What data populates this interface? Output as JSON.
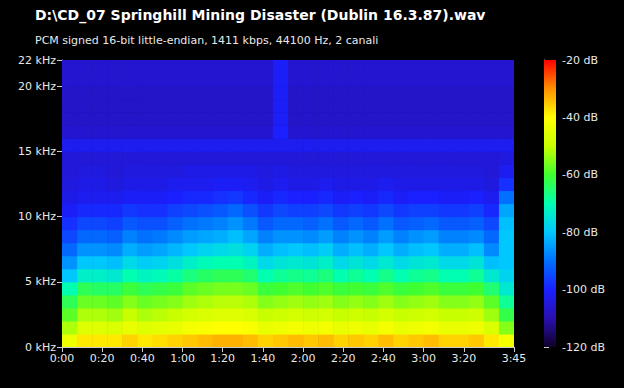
{
  "chart_data": {
    "type": "heatmap",
    "title": "D:\\CD_07 Springhill Mining Disaster (Dublin 16.3.87).wav",
    "subtitle": "PCM signed 16-bit little-endian, 1411 kbps, 44100 Hz, 2 canali",
    "xlim": [
      0,
      225
    ],
    "ylim": [
      0,
      22
    ],
    "xticks": [
      {
        "value": 0,
        "label": "0:00"
      },
      {
        "value": 20,
        "label": "0:20"
      },
      {
        "value": 40,
        "label": "0:40"
      },
      {
        "value": 60,
        "label": "1:00"
      },
      {
        "value": 80,
        "label": "1:20"
      },
      {
        "value": 100,
        "label": "1:40"
      },
      {
        "value": 120,
        "label": "2:00"
      },
      {
        "value": 140,
        "label": "2:20"
      },
      {
        "value": 160,
        "label": "2:40"
      },
      {
        "value": 180,
        "label": "3:00"
      },
      {
        "value": 200,
        "label": "3:20"
      },
      {
        "value": 225,
        "label": "3:45"
      }
    ],
    "yticks": [
      {
        "value": 0,
        "label": "0 kHz"
      },
      {
        "value": 5,
        "label": "5 kHz"
      },
      {
        "value": 10,
        "label": "10 kHz"
      },
      {
        "value": 15,
        "label": "15 kHz"
      },
      {
        "value": 20,
        "label": "20 kHz"
      },
      {
        "value": 22,
        "label": "22 kHz"
      }
    ],
    "grid": false,
    "xbins": [
      0,
      7.5,
      15,
      22.5,
      30,
      37.5,
      45,
      52.5,
      60,
      67.5,
      75,
      82.5,
      90,
      97.5,
      105,
      112.5,
      120,
      127.5,
      135,
      142.5,
      150,
      157.5,
      165,
      172.5,
      180,
      187.5,
      195,
      202.5,
      210,
      217.5,
      225
    ],
    "ybins": [
      0,
      1,
      2,
      3,
      4,
      5,
      6,
      7,
      8,
      9,
      10,
      11,
      12,
      13,
      14,
      15,
      16,
      17,
      18,
      19,
      20,
      21,
      22
    ],
    "cells": [
      [
        -43,
        -38,
        -38,
        -38,
        -36,
        -38,
        -37,
        -36,
        -35,
        -34,
        -33,
        -33,
        -34,
        -36,
        -35,
        -34,
        -35,
        -34,
        -36,
        -35,
        -36,
        -34,
        -36,
        -35,
        -34,
        -36,
        -36,
        -35,
        -38,
        -42
      ],
      [
        -52,
        -46,
        -46,
        -47,
        -44,
        -46,
        -45,
        -44,
        -42,
        -41,
        -40,
        -40,
        -41,
        -44,
        -43,
        -42,
        -43,
        -42,
        -44,
        -43,
        -44,
        -42,
        -44,
        -43,
        -42,
        -44,
        -44,
        -43,
        -47,
        -55
      ],
      [
        -58,
        -52,
        -52,
        -53,
        -50,
        -52,
        -51,
        -50,
        -48,
        -47,
        -46,
        -46,
        -47,
        -50,
        -49,
        -48,
        -49,
        -48,
        -50,
        -49,
        -50,
        -48,
        -50,
        -49,
        -48,
        -50,
        -50,
        -49,
        -53,
        -62
      ],
      [
        -63,
        -57,
        -57,
        -58,
        -55,
        -57,
        -56,
        -55,
        -53,
        -52,
        -51,
        -51,
        -52,
        -55,
        -54,
        -53,
        -54,
        -53,
        -55,
        -54,
        -55,
        -53,
        -55,
        -54,
        -53,
        -55,
        -55,
        -54,
        -58,
        -68
      ],
      [
        -70,
        -63,
        -64,
        -64,
        -61,
        -63,
        -62,
        -61,
        -58,
        -57,
        -56,
        -56,
        -57,
        -61,
        -60,
        -59,
        -60,
        -59,
        -61,
        -60,
        -61,
        -59,
        -61,
        -60,
        -59,
        -61,
        -61,
        -60,
        -65,
        -74
      ],
      [
        -80,
        -73,
        -73,
        -74,
        -70,
        -72,
        -71,
        -69,
        -66,
        -64,
        -63,
        -63,
        -65,
        -70,
        -68,
        -67,
        -68,
        -66,
        -70,
        -68,
        -70,
        -67,
        -70,
        -68,
        -67,
        -70,
        -70,
        -68,
        -74,
        -78
      ],
      [
        -86,
        -80,
        -80,
        -81,
        -77,
        -79,
        -78,
        -76,
        -73,
        -71,
        -70,
        -70,
        -72,
        -77,
        -75,
        -74,
        -75,
        -73,
        -77,
        -75,
        -77,
        -74,
        -77,
        -75,
        -74,
        -77,
        -77,
        -75,
        -81,
        -80
      ],
      [
        -91,
        -86,
        -86,
        -87,
        -83,
        -85,
        -84,
        -82,
        -80,
        -78,
        -77,
        -76,
        -78,
        -83,
        -81,
        -80,
        -81,
        -79,
        -83,
        -81,
        -83,
        -80,
        -83,
        -81,
        -80,
        -83,
        -83,
        -81,
        -87,
        -80
      ],
      [
        -95,
        -91,
        -91,
        -92,
        -88,
        -90,
        -89,
        -87,
        -85,
        -84,
        -83,
        -81,
        -84,
        -88,
        -86,
        -86,
        -87,
        -85,
        -88,
        -86,
        -88,
        -85,
        -88,
        -86,
        -85,
        -88,
        -88,
        -87,
        -91,
        -80
      ],
      [
        -98,
        -95,
        -95,
        -96,
        -93,
        -94,
        -94,
        -92,
        -90,
        -89,
        -88,
        -86,
        -89,
        -93,
        -91,
        -91,
        -92,
        -90,
        -93,
        -91,
        -93,
        -90,
        -93,
        -92,
        -91,
        -93,
        -93,
        -92,
        -95,
        -81
      ],
      [
        -101,
        -99,
        -99,
        -99,
        -97,
        -98,
        -98,
        -96,
        -95,
        -94,
        -93,
        -91,
        -94,
        -97,
        -95,
        -96,
        -96,
        -95,
        -97,
        -96,
        -97,
        -95,
        -97,
        -96,
        -96,
        -97,
        -97,
        -96,
        -99,
        -84
      ],
      [
        -103,
        -102,
        -102,
        -102,
        -101,
        -101,
        -101,
        -100,
        -99,
        -99,
        -98,
        -97,
        -99,
        -101,
        -99,
        -100,
        -100,
        -99,
        -101,
        -100,
        -101,
        -99,
        -101,
        -100,
        -100,
        -101,
        -101,
        -100,
        -102,
        -90
      ],
      [
        -104,
        -103,
        -103,
        -104,
        -103,
        -103,
        -103,
        -102,
        -102,
        -102,
        -101,
        -101,
        -102,
        -103,
        -102,
        -103,
        -103,
        -102,
        -103,
        -103,
        -103,
        -102,
        -103,
        -103,
        -103,
        -103,
        -103,
        -103,
        -104,
        -98
      ],
      [
        -105,
        -104,
        -104,
        -105,
        -104,
        -104,
        -104,
        -104,
        -103,
        -103,
        -103,
        -103,
        -103,
        -104,
        -103,
        -104,
        -104,
        -104,
        -104,
        -104,
        -104,
        -104,
        -104,
        -104,
        -104,
        -104,
        -104,
        -104,
        -105,
        -102
      ],
      [
        -105,
        -105,
        -105,
        -105,
        -105,
        -105,
        -105,
        -105,
        -105,
        -105,
        -105,
        -105,
        -105,
        -105,
        -105,
        -105,
        -105,
        -105,
        -105,
        -105,
        -105,
        -105,
        -105,
        -105,
        -105,
        -105,
        -105,
        -105,
        -105,
        -104
      ],
      [
        -102,
        -102,
        -102,
        -102,
        -102,
        -102,
        -102,
        -102,
        -102,
        -102,
        -102,
        -102,
        -102,
        -102,
        -102,
        -102,
        -102,
        -102,
        -102,
        -102,
        -102,
        -102,
        -102,
        -102,
        -102,
        -102,
        -102,
        -102,
        -102,
        -102
      ],
      [
        -106,
        -106,
        -106,
        -106,
        -106,
        -106,
        -106,
        -106,
        -106,
        -106,
        -106,
        -106,
        -106,
        -106,
        -100,
        -106,
        -106,
        -106,
        -106,
        -106,
        -106,
        -106,
        -106,
        -106,
        -106,
        -106,
        -106,
        -106,
        -106,
        -106
      ],
      [
        -107,
        -107,
        -107,
        -107,
        -107,
        -107,
        -107,
        -107,
        -107,
        -107,
        -107,
        -107,
        -107,
        -107,
        -101,
        -107,
        -107,
        -107,
        -107,
        -107,
        -107,
        -107,
        -107,
        -107,
        -107,
        -107,
        -107,
        -107,
        -107,
        -107
      ],
      [
        -107,
        -107,
        -107,
        -107,
        -107,
        -107,
        -107,
        -107,
        -107,
        -107,
        -107,
        -107,
        -107,
        -107,
        -101,
        -107,
        -107,
        -107,
        -107,
        -107,
        -107,
        -107,
        -107,
        -107,
        -107,
        -107,
        -107,
        -107,
        -107,
        -107
      ],
      [
        -107,
        -107,
        -107,
        -107,
        -107,
        -107,
        -107,
        -107,
        -107,
        -107,
        -107,
        -107,
        -107,
        -107,
        -101,
        -107,
        -107,
        -107,
        -107,
        -107,
        -107,
        -107,
        -107,
        -107,
        -107,
        -107,
        -107,
        -107,
        -107,
        -107
      ],
      [
        -106,
        -106,
        -106,
        -106,
        -106,
        -106,
        -106,
        -106,
        -106,
        -106,
        -106,
        -106,
        -106,
        -106,
        -101,
        -106,
        -106,
        -106,
        -106,
        -106,
        -106,
        -106,
        -106,
        -106,
        -106,
        -106,
        -106,
        -106,
        -106,
        -106
      ],
      [
        -106,
        -106,
        -106,
        -106,
        -106,
        -106,
        -106,
        -106,
        -106,
        -106,
        -106,
        -106,
        -106,
        -106,
        -101,
        -106,
        -106,
        -106,
        -106,
        -106,
        -106,
        -106,
        -106,
        -106,
        -106,
        -106,
        -106,
        -106,
        -106,
        -106
      ]
    ],
    "colorbar": {
      "range": [
        -120,
        -20
      ],
      "ticks": [
        {
          "value": -20,
          "label": "-20 dB"
        },
        {
          "value": -40,
          "label": "-40 dB"
        },
        {
          "value": -60,
          "label": "-60 dB"
        },
        {
          "value": -80,
          "label": "-80 dB"
        },
        {
          "value": -100,
          "label": "-100 dB"
        },
        {
          "value": -120,
          "label": "-120 dB"
        }
      ]
    }
  }
}
